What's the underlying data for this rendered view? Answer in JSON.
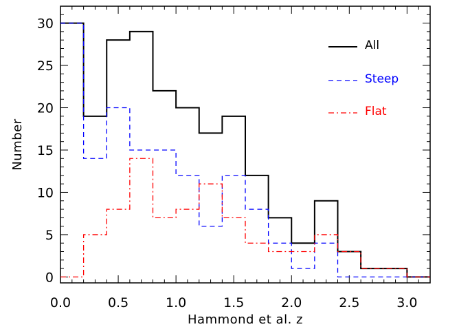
{
  "chart_data": {
    "type": "histogram",
    "xlabel": "Hammond et al. z",
    "ylabel": "Number",
    "xlim": [
      0.0,
      3.2
    ],
    "ylim": [
      -0.7,
      32
    ],
    "xticks": [
      0.0,
      0.5,
      1.0,
      1.5,
      2.0,
      2.5,
      3.0
    ],
    "xtick_labels": [
      "0.0",
      "0.5",
      "1.0",
      "1.5",
      "2.0",
      "2.5",
      "3.0"
    ],
    "yticks": [
      0,
      5,
      10,
      15,
      20,
      25,
      30
    ],
    "ytick_labels": [
      "0",
      "5",
      "10",
      "15",
      "20",
      "25",
      "30"
    ],
    "bin_edges": [
      0.0,
      0.2,
      0.4,
      0.6,
      0.8,
      1.0,
      1.2,
      1.4,
      1.6,
      1.8,
      2.0,
      2.2,
      2.4,
      2.6,
      2.8,
      3.0,
      3.2
    ],
    "grid": false,
    "legend_position": "top-right",
    "series": [
      {
        "name": "All",
        "color": "#000000",
        "linestyle": "solid",
        "values": [
          30,
          19,
          28,
          29,
          22,
          20,
          17,
          19,
          12,
          7,
          4,
          9,
          3,
          1,
          1,
          0
        ]
      },
      {
        "name": "Steep",
        "color": "#0000ff",
        "linestyle": "dashed",
        "values": [
          30,
          14,
          20,
          15,
          15,
          12,
          6,
          12,
          8,
          4,
          1,
          4,
          0,
          0,
          0,
          0
        ]
      },
      {
        "name": "Flat",
        "color": "#ff0000",
        "linestyle": "dash-dot",
        "values": [
          0,
          5,
          8,
          14,
          7,
          8,
          11,
          7,
          4,
          3,
          3,
          5,
          3,
          1,
          1,
          0
        ]
      }
    ]
  }
}
